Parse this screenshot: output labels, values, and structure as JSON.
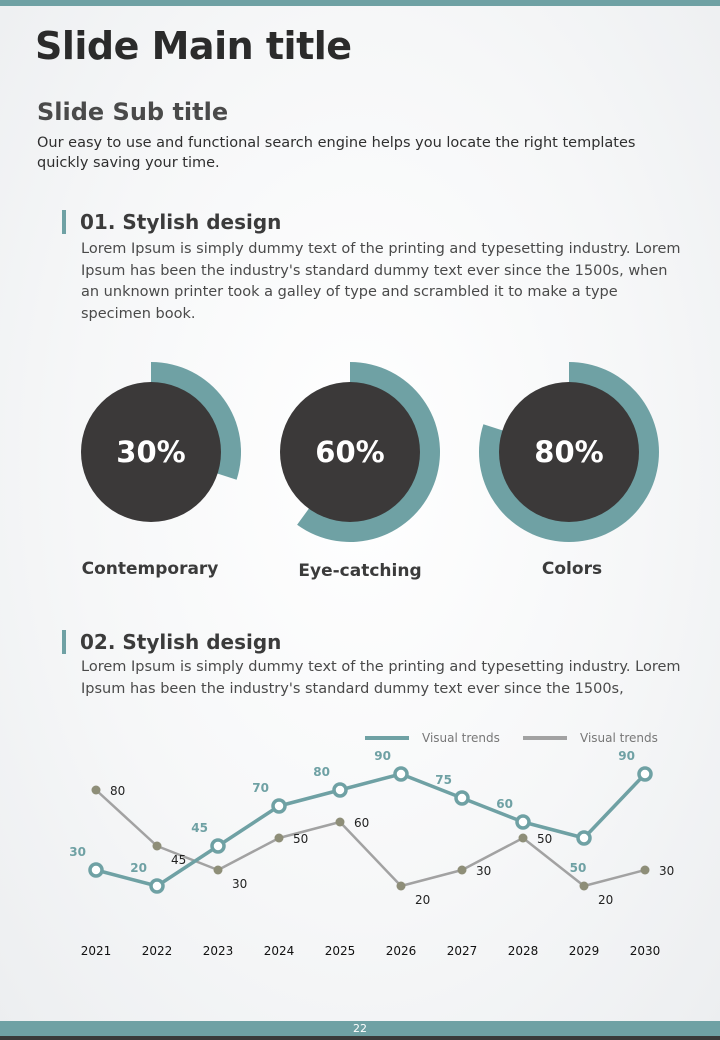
{
  "title": "Slide Main title",
  "subtitle": "Slide Sub title",
  "intro": "Our easy to use and functional search engine helps you locate the right templates quickly saving your time.",
  "section1": {
    "heading": "01. Stylish design",
    "text": "Lorem Ipsum is simply dummy text of the printing and typesetting industry. Lorem Ipsum has been the industry's standard dummy text ever since the 1500s, when an unknown printer took a galley of type and scrambled it to make a type specimen book."
  },
  "donuts": [
    {
      "value": 30,
      "label": "30%",
      "caption": "Contemporary"
    },
    {
      "value": 60,
      "label": "60%",
      "caption": "Eye-catching"
    },
    {
      "value": 80,
      "label": "80%",
      "caption": "Colors"
    }
  ],
  "section2": {
    "heading": "02. Stylish design",
    "text": "Lorem Ipsum is simply dummy text of the printing and typesetting industry. Lorem Ipsum has been the industry's standard dummy text ever since the 1500s,"
  },
  "page_number": "22",
  "colors": {
    "accent": "#6fa1a4",
    "dark": "#3b3939",
    "grey": "#a2a2a2",
    "grey_point": "#8e8e78"
  },
  "chart_data": {
    "type": "line",
    "categories": [
      "2021",
      "2022",
      "2023",
      "2024",
      "2025",
      "2026",
      "2027",
      "2028",
      "2029",
      "2030"
    ],
    "ylim": [
      0,
      100
    ],
    "legend_position": "top-right",
    "series": [
      {
        "name": "Visual trends",
        "color": "#6fa1a4",
        "values": [
          30,
          20,
          45,
          70,
          80,
          90,
          75,
          60,
          50,
          90
        ]
      },
      {
        "name": "Visual trends",
        "color": "#a2a2a2",
        "values": [
          80,
          45,
          30,
          50,
          60,
          20,
          30,
          50,
          20,
          30
        ]
      }
    ]
  }
}
